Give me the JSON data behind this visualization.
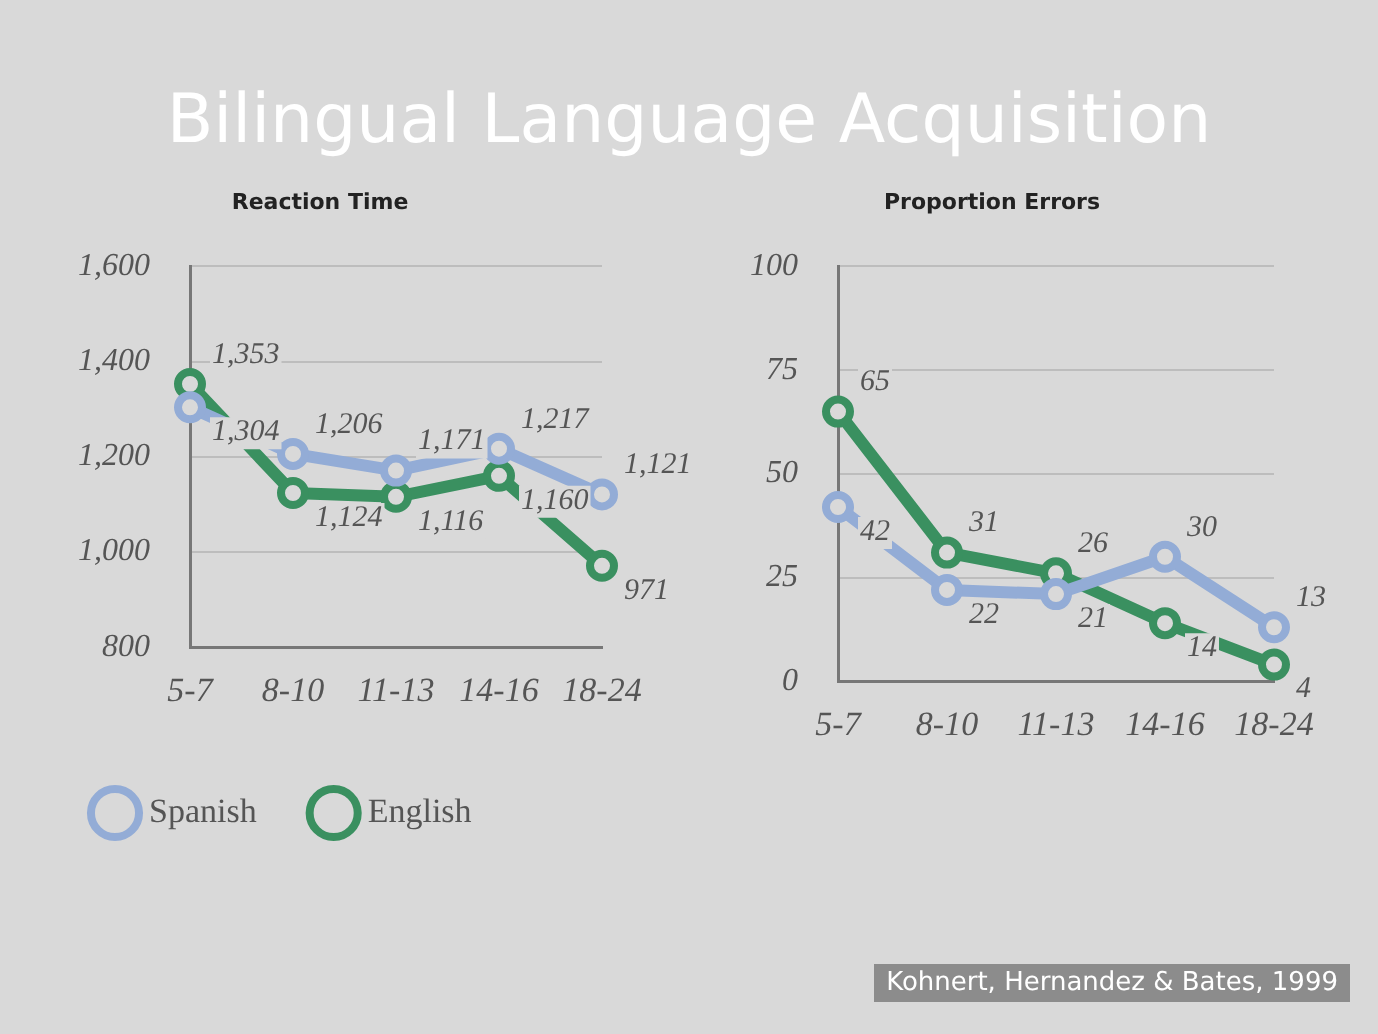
{
  "chart_data": [
    {
      "type": "line",
      "title": "Bilingual Language Acquisition",
      "subtitle": "Reaction Time",
      "categories": [
        "5-7",
        "8-10",
        "11-13",
        "14-16",
        "18-24"
      ],
      "series": [
        {
          "name": "Spanish",
          "color": "#93acd6",
          "values": [
            1304,
            1206,
            1171,
            1217,
            1121
          ],
          "value_labels": [
            "1,304",
            "1,206",
            "1,171",
            "1,217",
            "1,121"
          ]
        },
        {
          "name": "English",
          "color": "#3a9060",
          "values": [
            1353,
            1124,
            1116,
            1160,
            971
          ],
          "value_labels": [
            "1,353",
            "1,124",
            "1,116",
            "1,160",
            "971"
          ]
        }
      ],
      "ylim": [
        800,
        1600
      ],
      "yticks": [
        {
          "value": 800,
          "label": "800"
        },
        {
          "value": 1000,
          "label": "1,000"
        },
        {
          "value": 1200,
          "label": "1,200"
        },
        {
          "value": 1400,
          "label": "1,400"
        },
        {
          "value": 1600,
          "label": "1,600"
        }
      ],
      "grid": "y",
      "legend": "bottom",
      "marker": "circle",
      "line_style": "solid"
    },
    {
      "type": "line",
      "subtitle": "Proportion Errors",
      "categories": [
        "5-7",
        "8-10",
        "11-13",
        "14-16",
        "18-24"
      ],
      "series": [
        {
          "color": "#93acd6",
          "values": [
            42,
            22,
            21,
            30,
            13
          ],
          "value_labels": [
            "42",
            "22",
            "21",
            "30",
            "13"
          ]
        },
        {
          "color": "#3a9060",
          "values": [
            65,
            31,
            26,
            14,
            4
          ],
          "value_labels": [
            "65",
            "31",
            "26",
            "14",
            "4"
          ]
        }
      ],
      "ylim": [
        0,
        100
      ],
      "yticks": [
        0,
        25,
        50,
        75,
        100
      ],
      "grid": "y",
      "marker": "circle",
      "line_style": "solid",
      "annotations": [
        "Kohnert, Hernandez & Bates, 1999"
      ]
    }
  ]
}
